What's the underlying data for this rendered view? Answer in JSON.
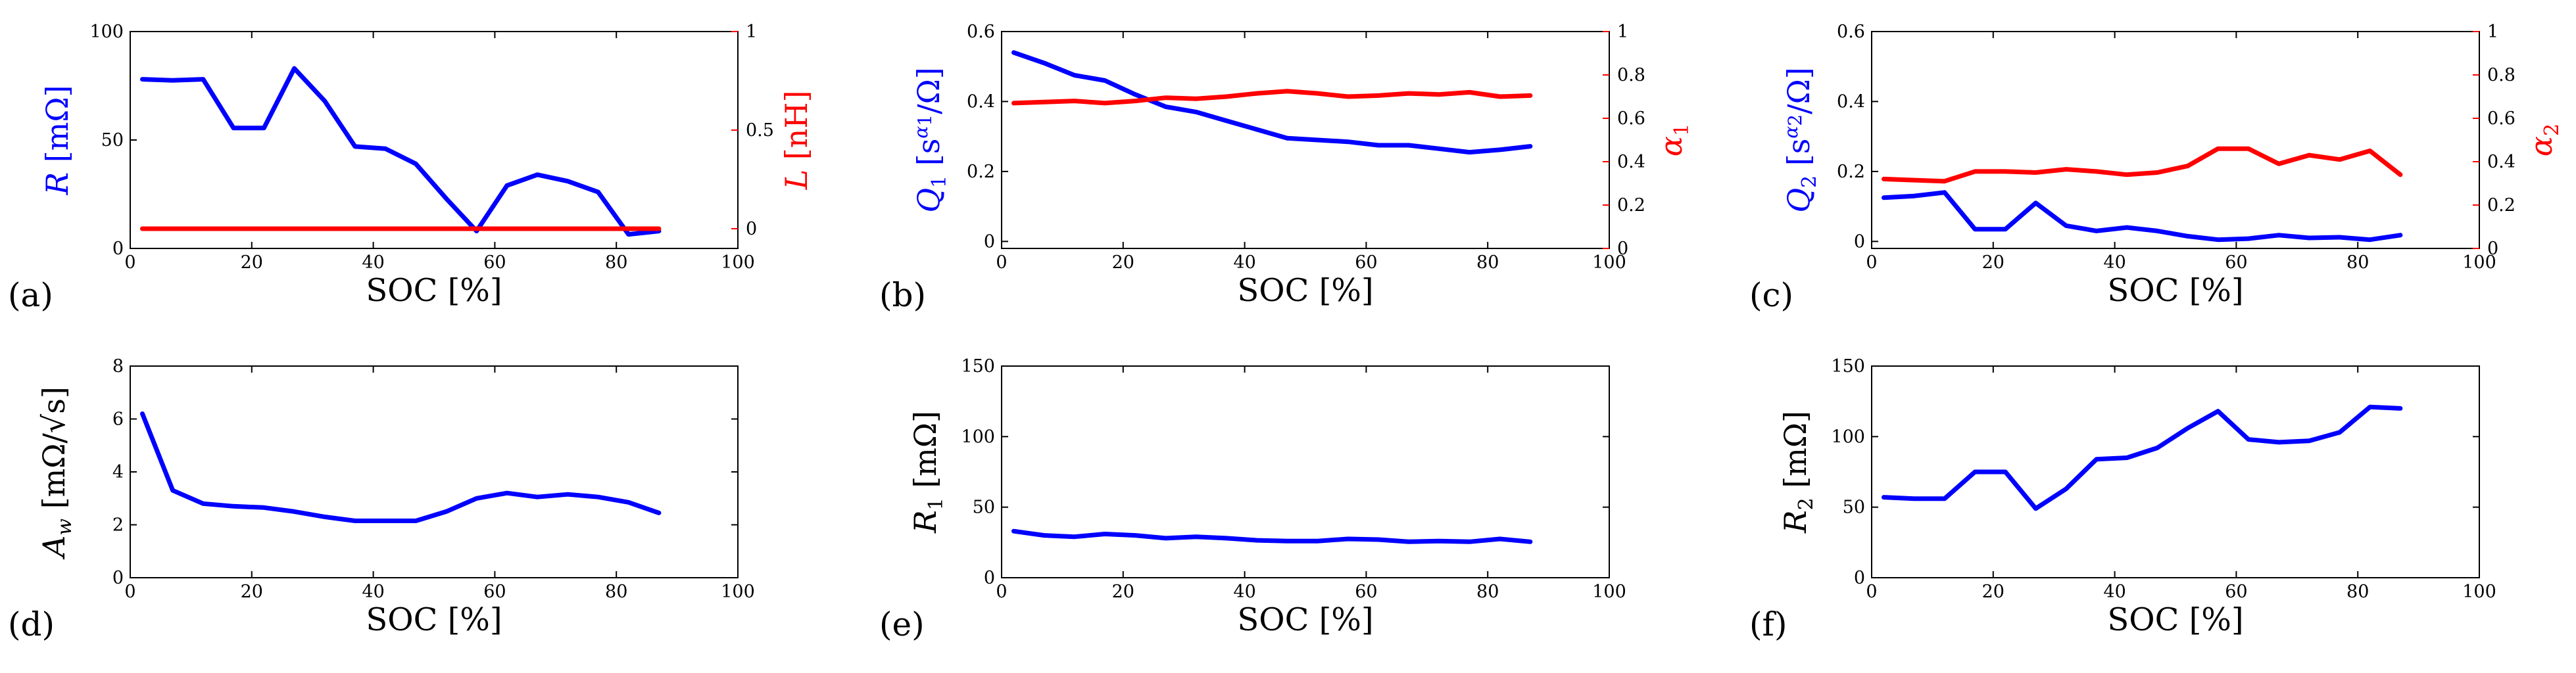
{
  "chart_data": [
    {
      "panel_label": "(a)",
      "type": "line",
      "xlabel": "SOC [%]",
      "xlim": [
        0,
        100
      ],
      "xticks": [
        "0",
        "20",
        "40",
        "60",
        "80",
        "100"
      ],
      "left": {
        "label_main": "R",
        "label_sub": "",
        "label_sup": "",
        "label_unit": " [mΩ]",
        "color": "#0000ff",
        "ylim": [
          0,
          100
        ],
        "yticks": [
          0,
          50,
          100
        ],
        "yticklabels": [
          "0",
          "50",
          "100"
        ]
      },
      "right": {
        "label_main": "L",
        "label_sub": "",
        "label_sup": "",
        "label_unit": " [nH]",
        "color": "#ff0000",
        "ylim": [
          -0.1,
          1
        ],
        "yticks": [
          0,
          0.5,
          1
        ],
        "yticklabels": [
          "0",
          "0.5",
          "1"
        ]
      },
      "series": [
        {
          "name": "R",
          "axis": "left",
          "color": "#0000ff",
          "x": [
            2,
            7,
            12,
            17,
            22,
            27,
            32,
            37,
            42,
            47,
            52,
            57,
            62,
            67,
            72,
            77,
            82,
            87
          ],
          "y": [
            78,
            77.5,
            78,
            55.5,
            55.5,
            83,
            68,
            47,
            46,
            39,
            23,
            8,
            29,
            34,
            31,
            26,
            6.5,
            8
          ]
        },
        {
          "name": "L",
          "axis": "right",
          "color": "#ff0000",
          "x": [
            2,
            87
          ],
          "y": [
            0,
            0
          ]
        }
      ]
    },
    {
      "panel_label": "(b)",
      "type": "line",
      "xlabel": "SOC [%]",
      "xlim": [
        0,
        100
      ],
      "xticks": [
        "0",
        "20",
        "40",
        "60",
        "80",
        "100"
      ],
      "left": {
        "label_main": "Q",
        "label_sub": "1",
        "label_sup": "1",
        "label_unit": "/Ω]",
        "color": "#0000ff",
        "ylim": [
          -0.02,
          0.6
        ],
        "yticks": [
          0,
          0.2,
          0.4,
          0.6
        ],
        "yticklabels": [
          "0",
          "0.2",
          "0.4",
          "0.6"
        ]
      },
      "right": {
        "label_main": "α",
        "label_sub": "1",
        "label_sup": "",
        "label_unit": "",
        "color": "#ff0000",
        "ylim": [
          0,
          1
        ],
        "yticks": [
          0,
          0.2,
          0.4,
          0.6,
          0.8,
          1
        ],
        "yticklabels": [
          "0",
          "0.2",
          "0.4",
          "0.6",
          "0.8",
          "1"
        ]
      },
      "series": [
        {
          "name": "Q1",
          "axis": "left",
          "color": "#0000ff",
          "x": [
            2,
            7,
            12,
            17,
            22,
            27,
            32,
            37,
            42,
            47,
            52,
            57,
            62,
            67,
            72,
            77,
            82,
            87
          ],
          "y": [
            0.54,
            0.51,
            0.475,
            0.46,
            0.42,
            0.385,
            0.37,
            0.345,
            0.32,
            0.295,
            0.29,
            0.285,
            0.275,
            0.275,
            0.265,
            0.255,
            0.262,
            0.272
          ]
        },
        {
          "name": "α1",
          "axis": "right",
          "color": "#ff0000",
          "x": [
            2,
            7,
            12,
            17,
            22,
            27,
            32,
            37,
            42,
            47,
            52,
            57,
            62,
            67,
            72,
            77,
            82,
            87
          ],
          "y": [
            0.67,
            0.675,
            0.68,
            0.67,
            0.68,
            0.695,
            0.69,
            0.7,
            0.715,
            0.725,
            0.715,
            0.7,
            0.705,
            0.715,
            0.71,
            0.72,
            0.7,
            0.705
          ]
        }
      ]
    },
    {
      "panel_label": "(c)",
      "type": "line",
      "xlabel": "SOC [%]",
      "xlim": [
        0,
        100
      ],
      "xticks": [
        "0",
        "20",
        "40",
        "60",
        "80",
        "100"
      ],
      "left": {
        "label_main": "Q",
        "label_sub": "2",
        "label_sup": "2",
        "label_unit": "/Ω]",
        "color": "#0000ff",
        "ylim": [
          -0.02,
          0.6
        ],
        "yticks": [
          0,
          0.2,
          0.4,
          0.6
        ],
        "yticklabels": [
          "0",
          "0.2",
          "0.4",
          "0.6"
        ]
      },
      "right": {
        "label_main": "α",
        "label_sub": "2",
        "label_sup": "",
        "label_unit": "",
        "color": "#ff0000",
        "ylim": [
          0,
          1
        ],
        "yticks": [
          0,
          0.2,
          0.4,
          0.6,
          0.8,
          1
        ],
        "yticklabels": [
          "0",
          "0.2",
          "0.4",
          "0.6",
          "0.8",
          "1"
        ]
      },
      "series": [
        {
          "name": "Q2",
          "axis": "left",
          "color": "#0000ff",
          "x": [
            2,
            7,
            12,
            17,
            22,
            27,
            32,
            37,
            42,
            47,
            52,
            57,
            62,
            67,
            72,
            77,
            82,
            87
          ],
          "y": [
            0.125,
            0.13,
            0.14,
            0.035,
            0.035,
            0.11,
            0.045,
            0.03,
            0.04,
            0.03,
            0.015,
            0.005,
            0.008,
            0.018,
            0.01,
            0.012,
            0.005,
            0.018
          ]
        },
        {
          "name": "α2",
          "axis": "right",
          "color": "#ff0000",
          "x": [
            2,
            7,
            12,
            17,
            22,
            27,
            32,
            37,
            42,
            47,
            52,
            57,
            62,
            67,
            72,
            77,
            82,
            87
          ],
          "y": [
            0.32,
            0.315,
            0.31,
            0.355,
            0.355,
            0.35,
            0.365,
            0.355,
            0.34,
            0.35,
            0.38,
            0.46,
            0.46,
            0.39,
            0.43,
            0.41,
            0.45,
            0.34
          ]
        }
      ]
    },
    {
      "panel_label": "(d)",
      "type": "line",
      "xlabel": "SOC [%]",
      "xlim": [
        0,
        100
      ],
      "xticks": [
        "0",
        "20",
        "40",
        "60",
        "80",
        "100"
      ],
      "left": {
        "label_main": "A",
        "label_sub": "w",
        "label_sup": "",
        "label_unit": " [mΩ/√s]",
        "color": "#000000",
        "ylim": [
          0,
          8
        ],
        "yticks": [
          0,
          2,
          4,
          6,
          8
        ],
        "yticklabels": [
          "0",
          "2",
          "4",
          "6",
          "8"
        ]
      },
      "series": [
        {
          "name": "Aw",
          "axis": "left",
          "color": "#0000ff",
          "x": [
            2,
            7,
            12,
            17,
            22,
            27,
            32,
            37,
            42,
            47,
            52,
            57,
            62,
            67,
            72,
            77,
            82,
            87
          ],
          "y": [
            6.2,
            3.3,
            2.8,
            2.7,
            2.65,
            2.5,
            2.3,
            2.15,
            2.15,
            2.15,
            2.5,
            3.0,
            3.2,
            3.05,
            3.15,
            3.05,
            2.85,
            2.45
          ]
        }
      ]
    },
    {
      "panel_label": "(e)",
      "type": "line",
      "xlabel": "SOC [%]",
      "xlim": [
        0,
        100
      ],
      "xticks": [
        "0",
        "20",
        "40",
        "60",
        "80",
        "100"
      ],
      "left": {
        "label_main": "R",
        "label_sub": "1",
        "label_sup": "",
        "label_unit": " [mΩ]",
        "color": "#000000",
        "ylim": [
          0,
          150
        ],
        "yticks": [
          0,
          50,
          100,
          150
        ],
        "yticklabels": [
          "0",
          "50",
          "100",
          "150"
        ]
      },
      "series": [
        {
          "name": "R1",
          "axis": "left",
          "color": "#0000ff",
          "x": [
            2,
            7,
            12,
            17,
            22,
            27,
            32,
            37,
            42,
            47,
            52,
            57,
            62,
            67,
            72,
            77,
            82,
            87
          ],
          "y": [
            33,
            30,
            29,
            31,
            30,
            28,
            29,
            28,
            26.5,
            26,
            26,
            27.5,
            27,
            25.5,
            26,
            25.5,
            27.5,
            25.5
          ]
        }
      ]
    },
    {
      "panel_label": "(f)",
      "type": "line",
      "xlabel": "SOC [%]",
      "xlim": [
        0,
        100
      ],
      "xticks": [
        "0",
        "20",
        "40",
        "60",
        "80",
        "100"
      ],
      "left": {
        "label_main": "R",
        "label_sub": "2",
        "label_sup": "",
        "label_unit": " [mΩ]",
        "color": "#000000",
        "ylim": [
          0,
          150
        ],
        "yticks": [
          0,
          50,
          100,
          150
        ],
        "yticklabels": [
          "0",
          "50",
          "100",
          "150"
        ]
      },
      "series": [
        {
          "name": "R2",
          "axis": "left",
          "color": "#0000ff",
          "x": [
            2,
            7,
            12,
            17,
            22,
            27,
            32,
            37,
            42,
            47,
            52,
            57,
            62,
            67,
            72,
            77,
            82,
            87
          ],
          "y": [
            57,
            56,
            56,
            75,
            75,
            49,
            63,
            84,
            85,
            92,
            106,
            118,
            98,
            96,
            97,
            103,
            121,
            120
          ]
        }
      ]
    }
  ]
}
